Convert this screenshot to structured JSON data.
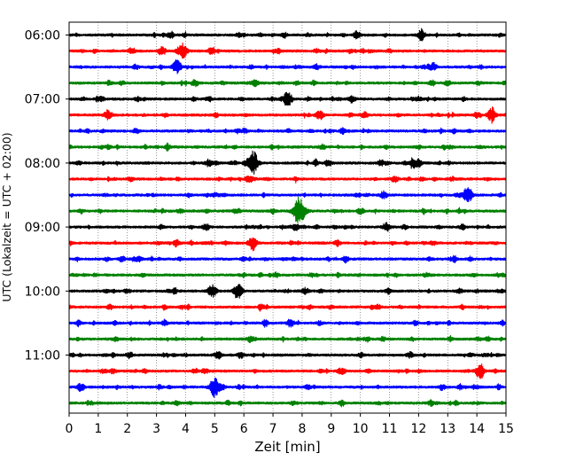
{
  "chart_data": {
    "type": "line",
    "subtype": "helicorder-seismogram",
    "xlabel": "Zeit  [min]",
    "ylabel": "UTC (Lokalzeit = UTC + 02:00)",
    "xlim": [
      0,
      15
    ],
    "x_ticks": [
      "0",
      "1",
      "2",
      "3",
      "4",
      "5",
      "6",
      "7",
      "8",
      "9",
      "10",
      "11",
      "12",
      "13",
      "14",
      "15"
    ],
    "y_tick_labels": [
      "06:00",
      "07:00",
      "08:00",
      "09:00",
      "10:00",
      "11:00"
    ],
    "start_time": "06:00",
    "trace_interval": "15 min",
    "trace_colors": [
      "#000000",
      "#ff0000",
      "#0000ff",
      "#008000"
    ],
    "grid": "vertical dotted lines at each minute",
    "traces": [
      {
        "start": "06:00",
        "color": "#000000",
        "events": [
          {
            "t": 12.1,
            "amp": 0.35
          },
          {
            "t": 9.9,
            "amp": 0.2
          },
          {
            "t": 7.4,
            "amp": 0.18
          },
          {
            "t": 5.8,
            "amp": 0.15
          },
          {
            "t": 3.5,
            "amp": 0.12
          }
        ]
      },
      {
        "start": "06:15",
        "color": "#ff0000",
        "events": [
          {
            "t": 3.9,
            "amp": 0.55
          },
          {
            "t": 4.9,
            "amp": 0.3
          },
          {
            "t": 3.2,
            "amp": 0.3
          },
          {
            "t": 11.0,
            "amp": 0.12
          }
        ]
      },
      {
        "start": "06:30",
        "color": "#0000ff",
        "events": [
          {
            "t": 3.7,
            "amp": 0.55
          },
          {
            "t": 12.5,
            "amp": 0.3
          },
          {
            "t": 2.3,
            "amp": 0.15
          },
          {
            "t": 8.5,
            "amp": 0.2
          }
        ]
      },
      {
        "start": "06:45",
        "color": "#008000",
        "events": [
          {
            "t": 4.3,
            "amp": 0.2
          },
          {
            "t": 6.4,
            "amp": 0.25
          },
          {
            "t": 13.0,
            "amp": 0.2
          }
        ]
      },
      {
        "start": "07:00",
        "color": "#000000",
        "events": [
          {
            "t": 7.5,
            "amp": 0.6
          },
          {
            "t": 9.7,
            "amp": 0.3
          },
          {
            "t": 1.1,
            "amp": 0.2
          },
          {
            "t": 12.0,
            "amp": 0.15
          }
        ]
      },
      {
        "start": "07:15",
        "color": "#ff0000",
        "events": [
          {
            "t": 14.5,
            "amp": 0.45
          },
          {
            "t": 8.6,
            "amp": 0.35
          },
          {
            "t": 1.3,
            "amp": 0.25
          },
          {
            "t": 10.1,
            "amp": 0.2
          }
        ]
      },
      {
        "start": "07:30",
        "color": "#0000ff",
        "events": [
          {
            "t": 9.4,
            "amp": 0.2
          },
          {
            "t": 5.8,
            "amp": 0.15
          },
          {
            "t": 13.2,
            "amp": 0.15
          }
        ]
      },
      {
        "start": "07:45",
        "color": "#008000",
        "events": [
          {
            "t": 3.4,
            "amp": 0.15
          },
          {
            "t": 8.7,
            "amp": 0.2
          },
          {
            "t": 12.0,
            "amp": 0.12
          }
        ]
      },
      {
        "start": "08:00",
        "color": "#000000",
        "events": [
          {
            "t": 6.3,
            "amp": 0.9
          },
          {
            "t": 11.8,
            "amp": 0.4
          },
          {
            "t": 10.7,
            "amp": 0.25
          },
          {
            "t": 8.9,
            "amp": 0.25
          },
          {
            "t": 4.8,
            "amp": 0.2
          }
        ]
      },
      {
        "start": "08:15",
        "color": "#ff0000",
        "events": [
          {
            "t": 6.2,
            "amp": 0.2
          },
          {
            "t": 11.2,
            "amp": 0.2
          },
          {
            "t": 2.1,
            "amp": 0.12
          }
        ]
      },
      {
        "start": "08:30",
        "color": "#0000ff",
        "events": [
          {
            "t": 13.7,
            "amp": 0.65
          },
          {
            "t": 10.8,
            "amp": 0.25
          },
          {
            "t": 5.0,
            "amp": 0.15
          }
        ]
      },
      {
        "start": "08:45",
        "color": "#008000",
        "events": [
          {
            "t": 7.9,
            "amp": 1.1
          },
          {
            "t": 3.8,
            "amp": 0.15
          },
          {
            "t": 10.0,
            "amp": 0.2
          }
        ]
      },
      {
        "start": "09:00",
        "color": "#000000",
        "events": [
          {
            "t": 10.9,
            "amp": 0.35
          },
          {
            "t": 4.7,
            "amp": 0.25
          },
          {
            "t": 7.8,
            "amp": 0.2
          },
          {
            "t": 13.5,
            "amp": 0.15
          }
        ]
      },
      {
        "start": "09:15",
        "color": "#ff0000",
        "events": [
          {
            "t": 6.3,
            "amp": 0.55
          },
          {
            "t": 3.7,
            "amp": 0.2
          },
          {
            "t": 9.2,
            "amp": 0.15
          },
          {
            "t": 12.5,
            "amp": 0.15
          }
        ]
      },
      {
        "start": "09:30",
        "color": "#0000ff",
        "events": [
          {
            "t": 2.4,
            "amp": 0.2
          },
          {
            "t": 9.5,
            "amp": 0.2
          },
          {
            "t": 6.0,
            "amp": 0.12
          }
        ]
      },
      {
        "start": "09:45",
        "color": "#008000",
        "events": [
          {
            "t": 12.3,
            "amp": 0.15
          },
          {
            "t": 7.1,
            "amp": 0.12
          }
        ]
      },
      {
        "start": "10:00",
        "color": "#000000",
        "events": [
          {
            "t": 5.8,
            "amp": 0.65
          },
          {
            "t": 4.9,
            "amp": 0.45
          },
          {
            "t": 3.6,
            "amp": 0.2
          },
          {
            "t": 8.1,
            "amp": 0.15
          },
          {
            "t": 13.4,
            "amp": 0.15
          }
        ]
      },
      {
        "start": "10:15",
        "color": "#ff0000",
        "events": [
          {
            "t": 6.6,
            "amp": 0.2
          },
          {
            "t": 10.6,
            "amp": 0.18
          },
          {
            "t": 1.4,
            "amp": 0.12
          }
        ]
      },
      {
        "start": "10:30",
        "color": "#0000ff",
        "events": [
          {
            "t": 7.6,
            "amp": 0.3
          },
          {
            "t": 3.3,
            "amp": 0.15
          },
          {
            "t": 11.9,
            "amp": 0.15
          }
        ]
      },
      {
        "start": "10:45",
        "color": "#008000",
        "events": [
          {
            "t": 6.2,
            "amp": 0.2
          },
          {
            "t": 1.6,
            "amp": 0.15
          },
          {
            "t": 10.2,
            "amp": 0.12
          }
        ]
      },
      {
        "start": "11:00",
        "color": "#000000",
        "events": [
          {
            "t": 5.1,
            "amp": 0.3
          },
          {
            "t": 5.9,
            "amp": 0.25
          },
          {
            "t": 11.7,
            "amp": 0.2
          },
          {
            "t": 2.1,
            "amp": 0.15
          }
        ]
      },
      {
        "start": "11:15",
        "color": "#ff0000",
        "events": [
          {
            "t": 14.1,
            "amp": 0.55
          },
          {
            "t": 1.5,
            "amp": 0.2
          },
          {
            "t": 9.3,
            "amp": 0.15
          }
        ]
      },
      {
        "start": "11:30",
        "color": "#0000ff",
        "events": [
          {
            "t": 5.0,
            "amp": 0.75
          },
          {
            "t": 0.4,
            "amp": 0.3
          },
          {
            "t": 12.8,
            "amp": 0.2
          },
          {
            "t": 3.1,
            "amp": 0.15
          },
          {
            "t": 8.2,
            "amp": 0.15
          }
        ]
      },
      {
        "start": "11:45",
        "color": "#008000",
        "events": [
          {
            "t": 3.7,
            "amp": 0.18
          },
          {
            "t": 7.7,
            "amp": 0.15
          },
          {
            "t": 12.4,
            "amp": 0.12
          }
        ]
      }
    ]
  }
}
